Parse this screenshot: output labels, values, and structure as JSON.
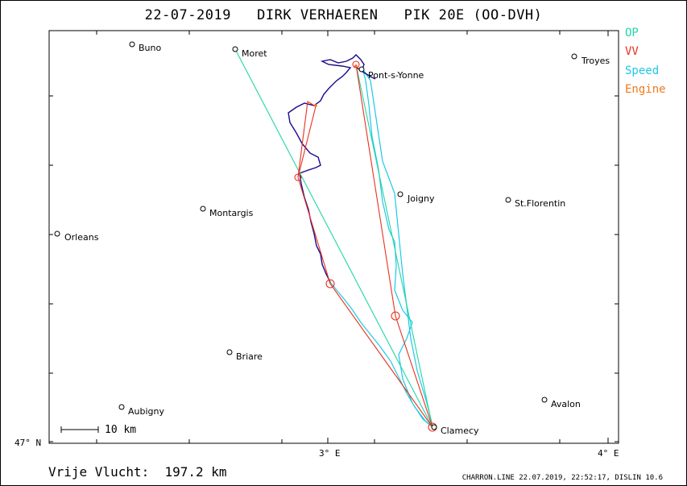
{
  "title": "22-07-2019   DIRK VERHAEREN   PIK 20E (OO-DVH)",
  "legend": [
    {
      "label": "OP",
      "color": "#1fd6a6"
    },
    {
      "label": "VV",
      "color": "#e8321e"
    },
    {
      "label": "Speed",
      "color": "#1ec8e6"
    },
    {
      "label": "Engine",
      "color": "#f07a1e"
    }
  ],
  "towns": [
    {
      "name": "Buno"
    },
    {
      "name": "Moret"
    },
    {
      "name": "Pont-s-Yonne"
    },
    {
      "name": "Troyes"
    },
    {
      "name": "Joigny"
    },
    {
      "name": "St.Florentin"
    },
    {
      "name": "Montargis"
    },
    {
      "name": "Orleans"
    },
    {
      "name": "Briare"
    },
    {
      "name": "Aubigny"
    },
    {
      "name": "Avalon"
    },
    {
      "name": "Clamecy"
    }
  ],
  "axes": {
    "lat_label": "47° N",
    "lon_labels": [
      "3° E",
      "4° E"
    ]
  },
  "scale_bar": "10 km",
  "footer": {
    "distance": "Vrije Vlucht:  197.2 km",
    "program": "CHARRON.LINE 22.07.2019, 22:52:17, DISLIN 10.6"
  },
  "colors": {
    "track": "#1a0a8c",
    "op_line": "#1fd6a6",
    "vv_line": "#e8321e",
    "speed": "#1ec8e6",
    "engine": "#f07a1e"
  }
}
